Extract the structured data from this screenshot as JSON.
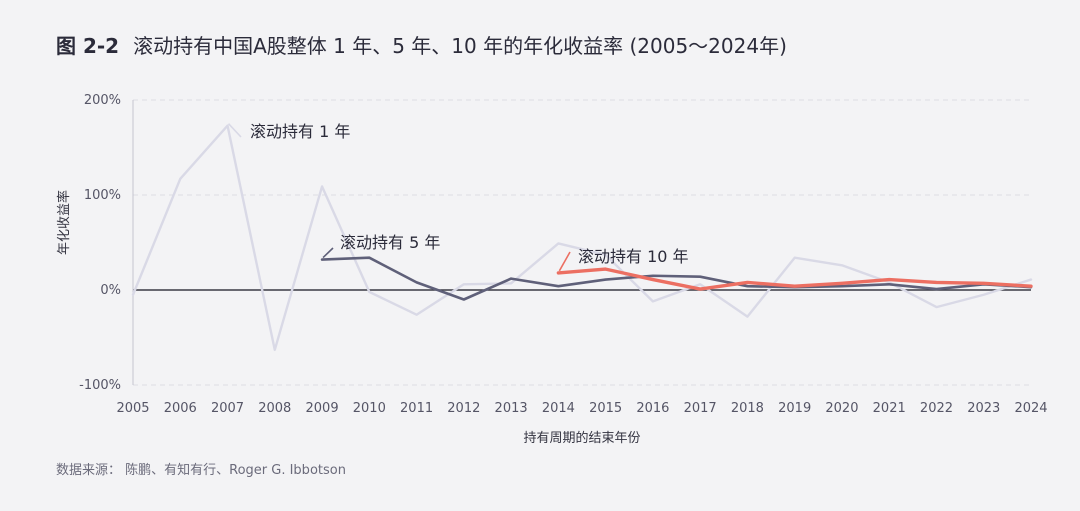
{
  "figure": {
    "number": "图 2-2",
    "title": "滚动持有中国A股整体 1 年、5 年、10 年的年化收益率 (2005～2024年)"
  },
  "source": "数据来源：  陈鹏、有知有行、Roger G. Ibbotson",
  "chart_data": {
    "type": "line",
    "title": "滚动持有中国A股整体 1 年、5 年、10 年的年化收益率 (2005～2024年)",
    "xlabel": "持有周期的结束年份",
    "ylabel": "年化收益率",
    "x": [
      2005,
      2006,
      2007,
      2008,
      2009,
      2010,
      2011,
      2012,
      2013,
      2014,
      2015,
      2016,
      2017,
      2018,
      2019,
      2020,
      2021,
      2022,
      2023,
      2024
    ],
    "x_tick_labels": [
      "2005",
      "2006",
      "2007",
      "2008",
      "2009",
      "2010",
      "2011",
      "2012",
      "2013",
      "2014",
      "2015",
      "2016",
      "2017",
      "2018",
      "2019",
      "2020",
      "2021",
      "2022",
      "2023",
      "2024"
    ],
    "ylim": [
      -100,
      200
    ],
    "y_ticks": [
      -100,
      0,
      100,
      200
    ],
    "y_tick_labels": [
      "-100%",
      "0%",
      "100%",
      "200%"
    ],
    "grid": true,
    "series": [
      {
        "name": "滚动持有 1 年",
        "color": "#d9d9e6",
        "values": [
          -5,
          117,
          173,
          -63,
          109,
          -2,
          -26,
          6,
          7,
          49,
          37,
          -12,
          6,
          -28,
          34,
          26,
          8,
          -18,
          -5,
          11
        ]
      },
      {
        "name": "滚动持有 5 年",
        "color": "#5f6079",
        "values": [
          null,
          null,
          null,
          null,
          32,
          34,
          8,
          -10,
          12,
          4,
          11,
          15,
          14,
          4,
          3,
          4,
          6,
          1,
          6,
          3
        ]
      },
      {
        "name": "滚动持有 10 年",
        "color": "#ec6f62",
        "values": [
          null,
          null,
          null,
          null,
          null,
          null,
          null,
          null,
          null,
          18,
          22,
          11,
          1,
          8,
          4,
          7,
          11,
          8,
          7,
          4
        ]
      }
    ]
  }
}
